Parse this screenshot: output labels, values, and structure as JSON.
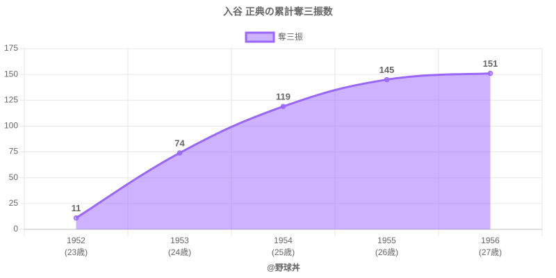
{
  "chart_data": {
    "type": "line",
    "title": "入谷 正典の累計奪三振数",
    "x_label": "@野球丼",
    "categories": [
      "1952",
      "1953",
      "1954",
      "1955",
      "1956"
    ],
    "category_sublabels": [
      "(23歳)",
      "(24歳)",
      "(25歳)",
      "(26歳)",
      "(27歳)"
    ],
    "series": [
      {
        "name": "奪三振",
        "color": "#9966ff",
        "fill": "rgba(153,102,255,0.5)",
        "values": [
          11,
          74,
          119,
          145,
          151
        ]
      }
    ],
    "ylim": [
      0,
      175
    ],
    "yticks": [
      0,
      25,
      50,
      75,
      100,
      125,
      150,
      175
    ],
    "grid": true,
    "legend": "top",
    "area": true,
    "smooth": true
  }
}
